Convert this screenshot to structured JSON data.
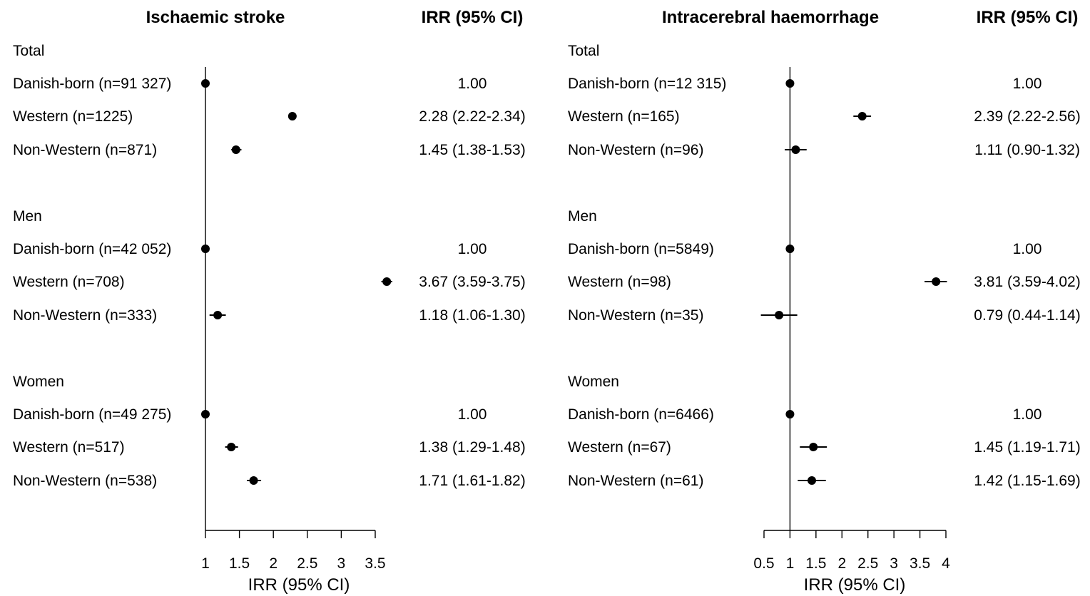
{
  "chart_data": [
    {
      "type": "forest",
      "title": "Ischaemic stroke",
      "ci_header": "IRR (95% CI)",
      "xlabel": "IRR (95% CI)",
      "xlim": [
        1,
        3.5
      ],
      "xticks": [
        1,
        1.5,
        2,
        2.5,
        3,
        3.5
      ],
      "xtick_labels": [
        "1",
        "1.5",
        "2",
        "2.5",
        "3",
        "3.5"
      ],
      "reference_line": 1,
      "groups": [
        {
          "name": "Total",
          "rows": [
            {
              "label": "Danish-born (n=91 327)",
              "irr": 1.0,
              "lower": 1.0,
              "upper": 1.0,
              "text": "1.00"
            },
            {
              "label": "Western (n=1225)",
              "irr": 2.28,
              "lower": 2.22,
              "upper": 2.34,
              "text": "2.28 (2.22-2.34)"
            },
            {
              "label": "Non-Western (n=871)",
              "irr": 1.45,
              "lower": 1.38,
              "upper": 1.53,
              "text": "1.45 (1.38-1.53)"
            }
          ]
        },
        {
          "name": "Men",
          "rows": [
            {
              "label": "Danish-born (n=42 052)",
              "irr": 1.0,
              "lower": 1.0,
              "upper": 1.0,
              "text": "1.00"
            },
            {
              "label": "Western (n=708)",
              "irr": 3.67,
              "lower": 3.59,
              "upper": 3.75,
              "text": "3.67 (3.59-3.75)"
            },
            {
              "label": "Non-Western (n=333)",
              "irr": 1.18,
              "lower": 1.06,
              "upper": 1.3,
              "text": "1.18 (1.06-1.30)"
            }
          ]
        },
        {
          "name": "Women",
          "rows": [
            {
              "label": "Danish-born (n=49 275)",
              "irr": 1.0,
              "lower": 1.0,
              "upper": 1.0,
              "text": "1.00"
            },
            {
              "label": "Western (n=517)",
              "irr": 1.38,
              "lower": 1.29,
              "upper": 1.48,
              "text": "1.38 (1.29-1.48)"
            },
            {
              "label": "Non-Western (n=538)",
              "irr": 1.71,
              "lower": 1.61,
              "upper": 1.82,
              "text": "1.71 (1.61-1.82)"
            }
          ]
        }
      ]
    },
    {
      "type": "forest",
      "title": "Intracerebral haemorrhage",
      "ci_header": "IRR (95% CI)",
      "xlabel": "IRR (95% CI)",
      "xlim": [
        0.5,
        4
      ],
      "xticks": [
        0.5,
        1,
        1.5,
        2,
        2.5,
        3,
        3.5,
        4
      ],
      "xtick_labels": [
        "0.5",
        "1",
        "1.5",
        "2",
        "2.5",
        "3",
        "3.5",
        "4"
      ],
      "reference_line": 1,
      "groups": [
        {
          "name": "Total",
          "rows": [
            {
              "label": "Danish-born (n=12 315)",
              "irr": 1.0,
              "lower": 1.0,
              "upper": 1.0,
              "text": "1.00"
            },
            {
              "label": "Western (n=165)",
              "irr": 2.39,
              "lower": 2.22,
              "upper": 2.56,
              "text": "2.39 (2.22-2.56)"
            },
            {
              "label": "Non-Western (n=96)",
              "irr": 1.11,
              "lower": 0.9,
              "upper": 1.32,
              "text": "1.11 (0.90-1.32)"
            }
          ]
        },
        {
          "name": "Men",
          "rows": [
            {
              "label": "Danish-born (n=5849)",
              "irr": 1.0,
              "lower": 1.0,
              "upper": 1.0,
              "text": "1.00"
            },
            {
              "label": "Western (n=98)",
              "irr": 3.81,
              "lower": 3.59,
              "upper": 4.02,
              "text": "3.81 (3.59-4.02)"
            },
            {
              "label": "Non-Western (n=35)",
              "irr": 0.79,
              "lower": 0.44,
              "upper": 1.14,
              "text": "0.79 (0.44-1.14)"
            }
          ]
        },
        {
          "name": "Women",
          "rows": [
            {
              "label": "Danish-born (n=6466)",
              "irr": 1.0,
              "lower": 1.0,
              "upper": 1.0,
              "text": "1.00"
            },
            {
              "label": "Western (n=67)",
              "irr": 1.45,
              "lower": 1.19,
              "upper": 1.71,
              "text": "1.45 (1.19-1.71)"
            },
            {
              "label": "Non-Western (n=61)",
              "irr": 1.42,
              "lower": 1.15,
              "upper": 1.69,
              "text": "1.42 (1.15-1.69)"
            }
          ]
        }
      ]
    }
  ]
}
